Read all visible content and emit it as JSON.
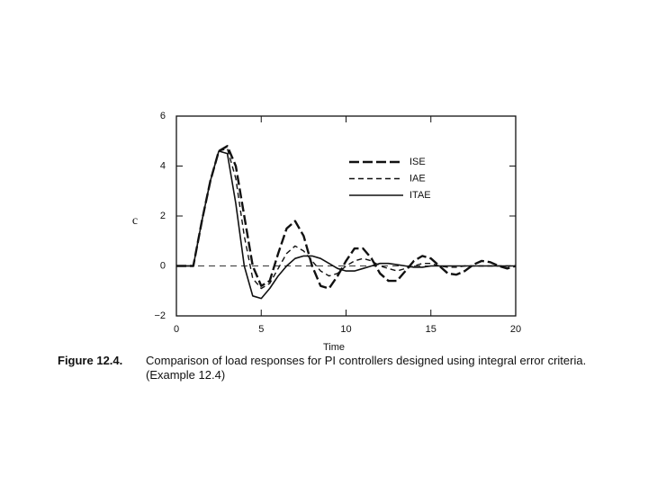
{
  "chart_data": {
    "type": "line",
    "x_label": "Time",
    "y_label": "c",
    "caption": {
      "label": "Figure 12.4.",
      "text": "Comparison of load responses for PI controllers designed using integral error criteria. (Example 12.4)"
    },
    "x": [
      0,
      0.5,
      1,
      1.5,
      2,
      2.5,
      3,
      3.5,
      4,
      4.5,
      5,
      5.5,
      6,
      6.5,
      7,
      7.5,
      8,
      8.5,
      9,
      9.5,
      10,
      10.5,
      11,
      11.5,
      12,
      12.5,
      13,
      13.5,
      14,
      14.5,
      15,
      15.5,
      16,
      16.5,
      17,
      17.5,
      18,
      18.5,
      19,
      19.5,
      20
    ],
    "series": [
      {
        "name": "ISE",
        "color": "#111111",
        "line_style": "long-dash",
        "values": [
          0,
          0,
          0,
          1.8,
          3.4,
          4.6,
          4.8,
          4.0,
          2.0,
          0,
          -0.8,
          -0.6,
          0.5,
          1.5,
          1.8,
          1.2,
          0,
          -0.8,
          -0.9,
          -0.4,
          0.2,
          0.7,
          0.7,
          0.3,
          -0.3,
          -0.6,
          -0.6,
          -0.2,
          0.2,
          0.4,
          0.3,
          0,
          -0.3,
          -0.35,
          -0.2,
          0.05,
          0.2,
          0.15,
          0,
          -0.1,
          0
        ]
      },
      {
        "name": "IAE",
        "color": "#111111",
        "line_style": "dashed",
        "values": [
          0,
          0,
          0,
          1.8,
          3.4,
          4.6,
          4.7,
          3.5,
          1.2,
          -0.5,
          -0.9,
          -0.7,
          -0.1,
          0.5,
          0.8,
          0.6,
          0.2,
          -0.2,
          -0.4,
          -0.3,
          0,
          0.2,
          0.3,
          0.2,
          0,
          -0.1,
          -0.2,
          -0.1,
          0,
          0.1,
          0.1,
          0,
          -0.05,
          -0.05,
          0,
          0,
          0,
          0,
          0,
          0,
          0
        ]
      },
      {
        "name": "ITAE",
        "color": "#111111",
        "line_style": "solid",
        "values": [
          0,
          0,
          0,
          1.8,
          3.4,
          4.6,
          4.5,
          2.5,
          0,
          -1.2,
          -1.3,
          -0.9,
          -0.4,
          0,
          0.3,
          0.4,
          0.4,
          0.3,
          0.1,
          -0.1,
          -0.2,
          -0.2,
          -0.1,
          0,
          0.1,
          0.1,
          0.05,
          0,
          -0.05,
          -0.05,
          0,
          0,
          0,
          0,
          0,
          0,
          0,
          0,
          0,
          0,
          0
        ]
      }
    ],
    "xlim": [
      0,
      20
    ],
    "xticks": [
      0,
      5,
      10,
      15,
      20
    ],
    "ylim": [
      -2,
      6
    ],
    "yticks": [
      {
        "value": -2,
        "label": "−2"
      },
      0,
      2,
      4,
      6
    ],
    "zero_line": true,
    "legend": "upper right"
  }
}
